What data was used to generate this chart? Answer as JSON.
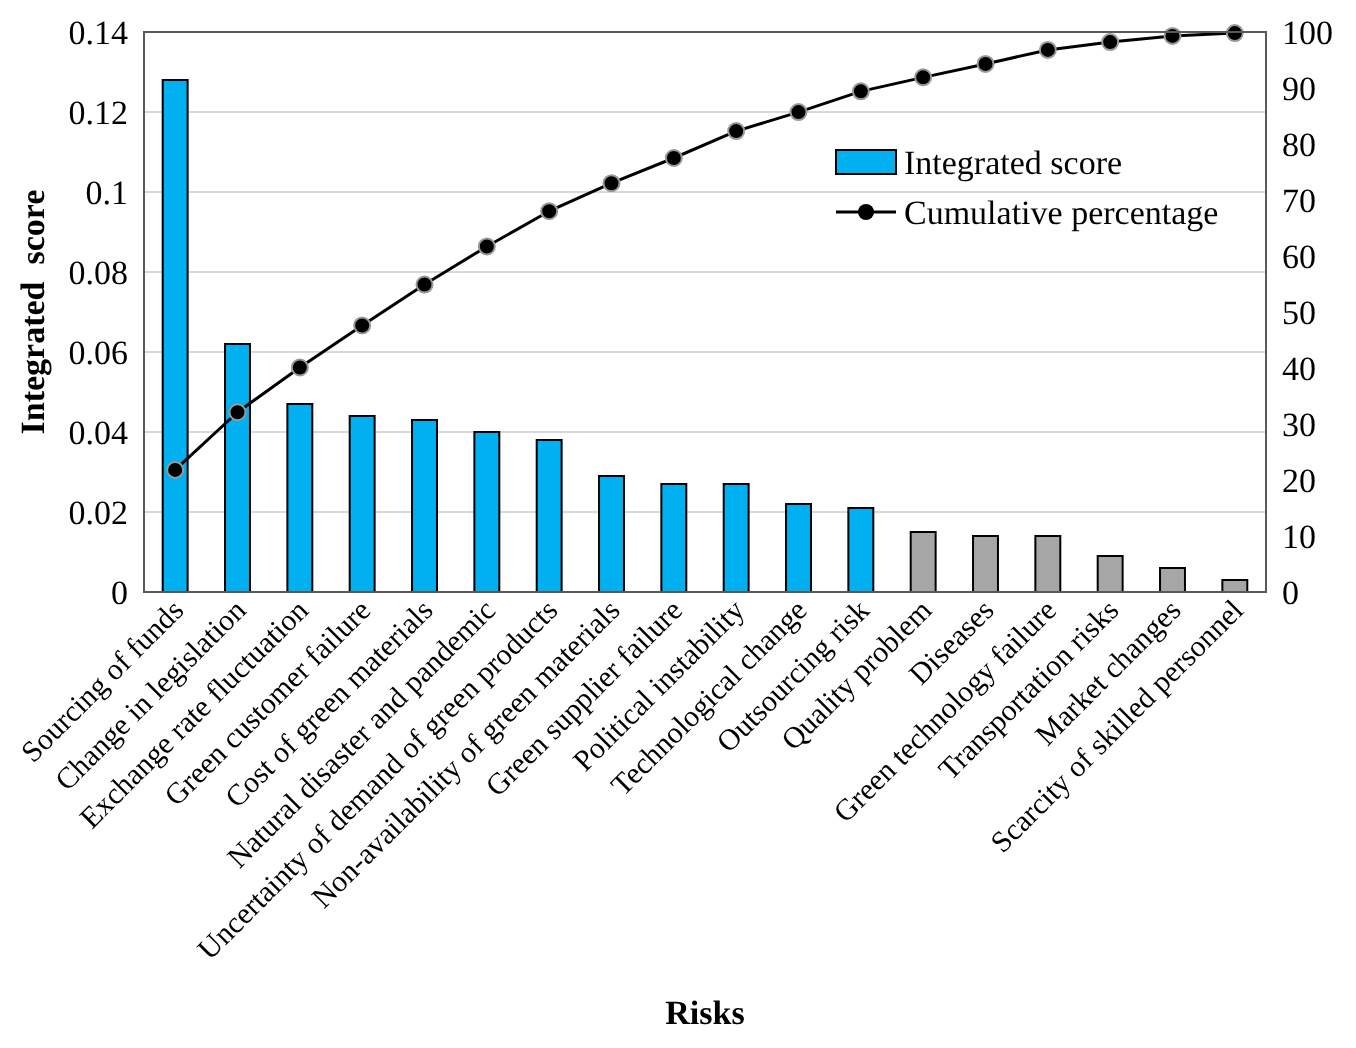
{
  "chart_data": {
    "type": "bar",
    "xlabel": "Risks",
    "ylabel": "Integrated  score",
    "categories": [
      "Sourcing of funds",
      "Change in legislation",
      "Exchange rate fluctuation",
      "Green customer failure",
      "Cost of green materials",
      "Natural disaster and pandemic",
      "Uncertainty of demand of green products",
      "Non-availability of green materials",
      "Green supplier failure",
      "Political instability",
      "Technological change",
      "Outsourcing risk",
      "Quality problem",
      "Diseases",
      "Green technology failure",
      "Transportation risks",
      "Market changes",
      "Scarcity of skilled personnel"
    ],
    "series": [
      {
        "name": "Integrated score",
        "color": "#00b0f0",
        "colors": [
          "#00b0f0",
          "#00b0f0",
          "#00b0f0",
          "#00b0f0",
          "#00b0f0",
          "#00b0f0",
          "#00b0f0",
          "#00b0f0",
          "#00b0f0",
          "#00b0f0",
          "#00b0f0",
          "#00b0f0",
          "#a6a6a6",
          "#a6a6a6",
          "#a6a6a6",
          "#a6a6a6",
          "#a6a6a6",
          "#a6a6a6"
        ],
        "values": [
          0.128,
          0.062,
          0.047,
          0.044,
          0.043,
          0.04,
          0.038,
          0.029,
          0.027,
          0.027,
          0.022,
          0.021,
          0.015,
          0.014,
          0.014,
          0.009,
          0.006,
          0.003
        ]
      },
      {
        "name": "Cumulative percentage",
        "type": "line",
        "axis": "y2",
        "color": "#000000",
        "marker": "circle",
        "values": [
          21.8,
          32.1,
          40.1,
          47.6,
          54.9,
          61.7,
          68,
          73,
          77.5,
          82.3,
          85.7,
          89.4,
          91.9,
          94.3,
          96.8,
          98.2,
          99.3,
          99.8
        ]
      }
    ],
    "ylim": [
      0,
      0.14
    ],
    "yticks": [
      0,
      0.02,
      0.04,
      0.06,
      0.08,
      0.1,
      0.12,
      0.14
    ],
    "y2lim": [
      0,
      100
    ],
    "y2ticks": [
      0,
      10,
      20,
      30,
      40,
      50,
      60,
      70,
      80,
      90,
      100
    ],
    "grid": "y",
    "legend": "top right"
  }
}
